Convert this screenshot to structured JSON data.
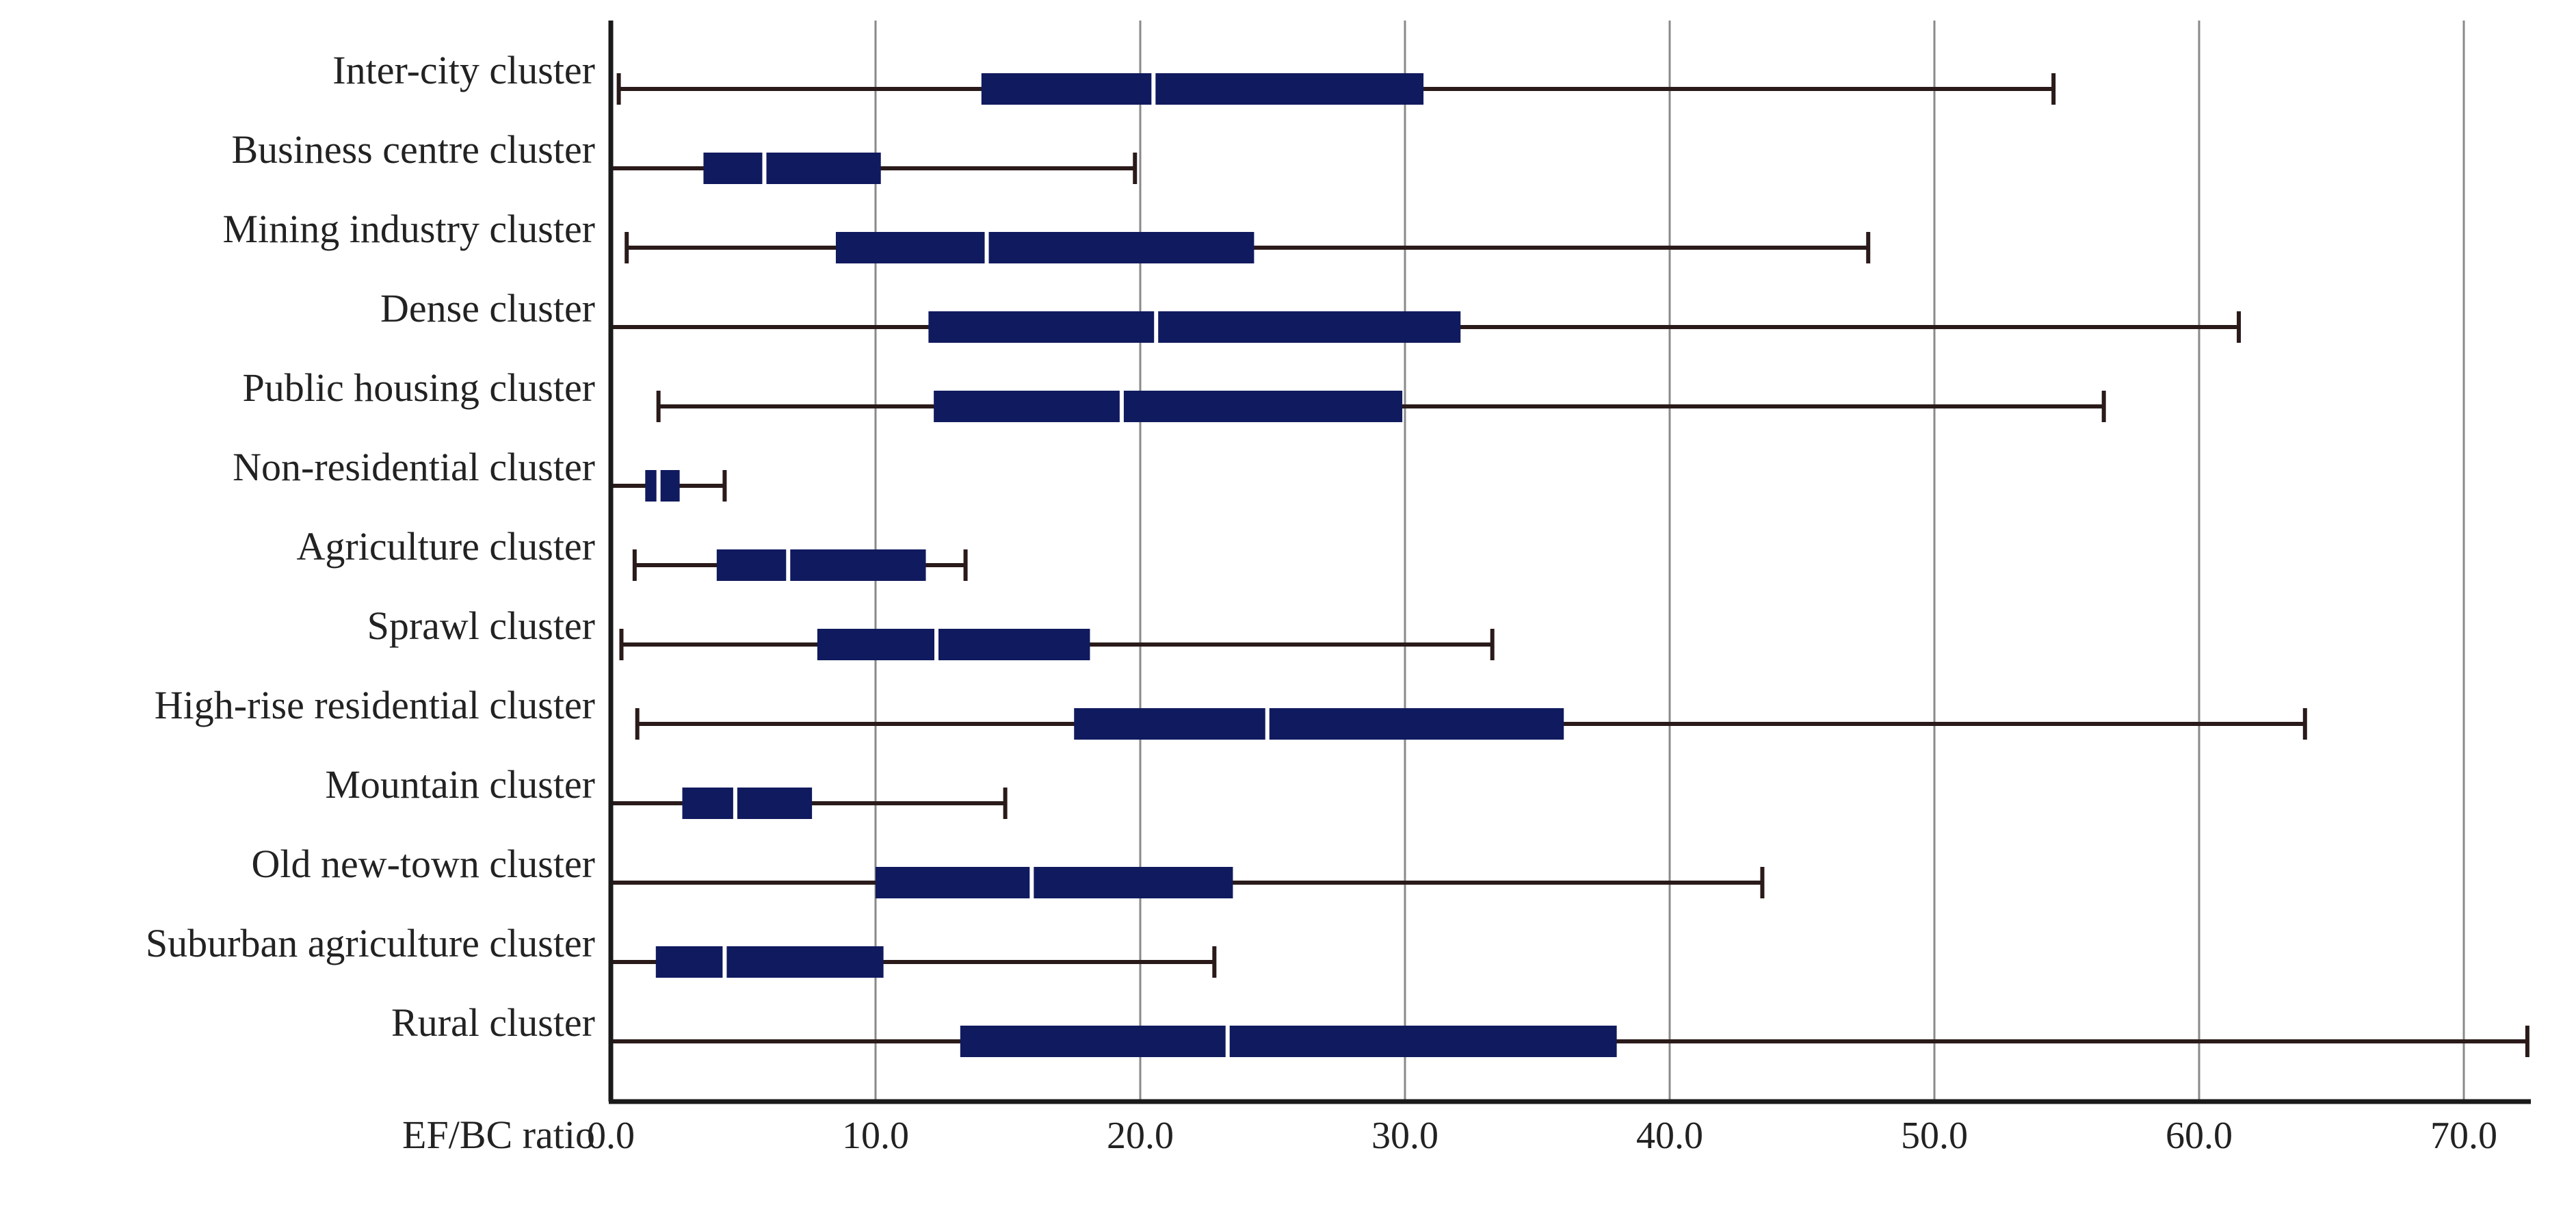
{
  "chart_data": {
    "type": "boxplot",
    "orientation": "horizontal",
    "xlabel": "EF/BC ratio",
    "ylabel": "",
    "title": "",
    "xlim": [
      0,
      72.5
    ],
    "xticks": [
      "0.0",
      "10.0",
      "20.0",
      "30.0",
      "40.0",
      "50.0",
      "60.0",
      "70.0"
    ],
    "xtick_values": [
      0,
      10,
      20,
      30,
      40,
      50,
      60,
      70
    ],
    "grid": "vertical",
    "box_color": "#101a5e",
    "whisker_color": "#2a1a1a",
    "categories": [
      "Inter-city cluster",
      "Business centre cluster",
      "Mining industry cluster",
      "Dense cluster",
      "Public housing cluster",
      "Non-residential cluster",
      "Agriculture cluster",
      "Sprawl cluster",
      "High-rise residential cluster",
      "Mountain cluster",
      "Old new-town cluster",
      "Suburban agriculture cluster",
      "Rural cluster"
    ],
    "boxes": [
      {
        "min": 0.3,
        "q1": 14.0,
        "median": 20.5,
        "q3": 30.7,
        "max": 54.5
      },
      {
        "min": 0.0,
        "q1": 3.5,
        "median": 5.8,
        "q3": 10.2,
        "max": 19.8
      },
      {
        "min": 0.6,
        "q1": 8.5,
        "median": 14.2,
        "q3": 24.3,
        "max": 47.5
      },
      {
        "min": 0.0,
        "q1": 12.0,
        "median": 20.6,
        "q3": 32.1,
        "max": 61.5
      },
      {
        "min": 1.8,
        "q1": 12.2,
        "median": 19.3,
        "q3": 29.9,
        "max": 56.4
      },
      {
        "min": 0.0,
        "q1": 1.3,
        "median": 1.8,
        "q3": 2.6,
        "max": 4.3
      },
      {
        "min": 0.9,
        "q1": 4.0,
        "median": 6.7,
        "q3": 11.9,
        "max": 13.4
      },
      {
        "min": 0.4,
        "q1": 7.8,
        "median": 12.3,
        "q3": 18.1,
        "max": 33.3
      },
      {
        "min": 1.0,
        "q1": 17.5,
        "median": 24.8,
        "q3": 36.0,
        "max": 64.0
      },
      {
        "min": 0.0,
        "q1": 2.7,
        "median": 4.7,
        "q3": 7.6,
        "max": 14.9
      },
      {
        "min": 0.0,
        "q1": 10.0,
        "median": 15.9,
        "q3": 23.5,
        "max": 43.5
      },
      {
        "min": 0.0,
        "q1": 1.7,
        "median": 4.3,
        "q3": 10.3,
        "max": 22.8
      },
      {
        "min": 0.0,
        "q1": 13.2,
        "median": 23.3,
        "q3": 38.0,
        "max": 72.4
      }
    ]
  }
}
